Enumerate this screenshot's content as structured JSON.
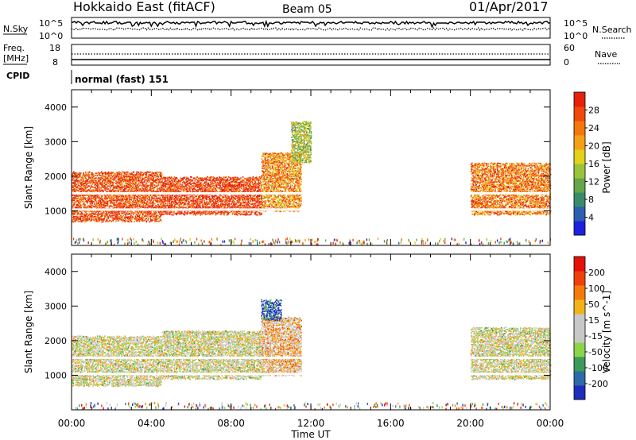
{
  "header": {
    "title": "Hokkaido East (fitACF)",
    "beam": "Beam 05",
    "date": "01/Apr/2017"
  },
  "nsky_panel": {
    "left_label": "N.Sky",
    "right_label": "N.Search",
    "left_ticks": [
      "10^5",
      "10^0"
    ],
    "right_ticks": [
      "10^5",
      "10^0"
    ]
  },
  "freq_panel": {
    "left_label_line1": "Freq.",
    "left_label_line2": "[MHz]",
    "right_label": "Nave",
    "left_ticks": [
      "18",
      "8"
    ],
    "right_ticks": [
      "60",
      "0"
    ]
  },
  "cpid_panel": {
    "label": "CPID",
    "value": "normal (fast) 151"
  },
  "chart_data": [
    {
      "type": "heatmap",
      "quantity": "Power",
      "ylabel": "Slant Range [km]",
      "ylim": [
        0,
        4500
      ],
      "yticks": [
        1000,
        2000,
        3000,
        4000
      ],
      "colorbar_label": "Power [dB]",
      "colorbar_ticks": [
        "28",
        "24",
        "20",
        "16",
        "12",
        "8",
        "4"
      ],
      "colorbar_colors": [
        "#1f1fe0",
        "#2c5fb0",
        "#3c8a6c",
        "#66a64a",
        "#9ac43a",
        "#e2d21a",
        "#f3a015",
        "#f5760a",
        "#f0480a",
        "#e6200a"
      ],
      "regions": [
        {
          "t0": 0.0,
          "t1": 4.5,
          "r0": 700,
          "r1": 2150,
          "level": 0.85
        },
        {
          "t0": 4.5,
          "t1": 9.5,
          "r0": 900,
          "r1": 2000,
          "level": 0.9
        },
        {
          "t0": 9.5,
          "t1": 11.5,
          "r0": 1000,
          "r1": 2700,
          "level": 0.7
        },
        {
          "t0": 11.0,
          "t1": 12.0,
          "r0": 2400,
          "r1": 3600,
          "level": 0.45
        },
        {
          "t0": 20.0,
          "t1": 24.0,
          "r0": 900,
          "r1": 2400,
          "level": 0.75
        }
      ]
    },
    {
      "type": "heatmap",
      "quantity": "Velocity",
      "xlabel": "Time UT",
      "ylabel": "Slant Range [km]",
      "xlim": [
        0,
        24
      ],
      "xticks": [
        "00:00",
        "04:00",
        "08:00",
        "12:00",
        "16:00",
        "20:00",
        "00:00"
      ],
      "ylim": [
        0,
        4500
      ],
      "yticks": [
        1000,
        2000,
        3000,
        4000
      ],
      "colorbar_label": "Velocity [m s^-1]",
      "colorbar_ticks": [
        "200",
        "100",
        "50",
        "15",
        "-15",
        "-50",
        "-100",
        "-200"
      ],
      "colorbar_colors": [
        "#1e2cc0",
        "#2e6aa8",
        "#3c9a5a",
        "#8cd44a",
        "#c8c8c8",
        "#c8c8c8",
        "#f0b41a",
        "#f57a0a",
        "#f0400a",
        "#e6100a"
      ],
      "regions": [
        {
          "t0": 0.0,
          "t1": 4.5,
          "r0": 700,
          "r1": 2150,
          "level": 0.5
        },
        {
          "t0": 4.5,
          "t1": 9.5,
          "r0": 900,
          "r1": 2300,
          "level": 0.5
        },
        {
          "t0": 9.5,
          "t1": 11.5,
          "r0": 1000,
          "r1": 2700,
          "level": 0.62
        },
        {
          "t0": 9.5,
          "t1": 10.5,
          "r0": 2600,
          "r1": 3200,
          "level": 0.1
        },
        {
          "t0": 20.0,
          "t1": 24.0,
          "r0": 900,
          "r1": 2400,
          "level": 0.5
        }
      ]
    }
  ]
}
